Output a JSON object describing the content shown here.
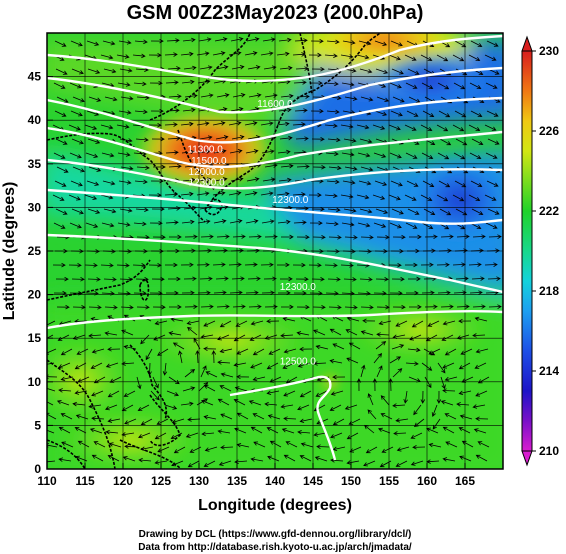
{
  "title": "GSM 00Z23May2023 (200.0hPa)",
  "xlabel": "Longitude (degrees)",
  "ylabel": "Latitude  (degrees)",
  "credit_line1": "Drawing by DCL (https://www.gfd-dennou.org/library/dcl/)",
  "credit_line2": "Data from http://database.rish.kyoto-u.ac.jp/arch/jmadata/",
  "colors": {
    "land_outline": "#000000",
    "contour": "#ffffff",
    "frame": "#000000"
  },
  "chart_data": {
    "type": "heatmap",
    "x_ticks": [
      "110",
      "115",
      "120",
      "125",
      "130",
      "135",
      "140",
      "145",
      "150",
      "155",
      "160",
      "165"
    ],
    "x_tick_values": [
      110,
      115,
      120,
      125,
      130,
      135,
      140,
      145,
      150,
      155,
      160,
      165
    ],
    "y_ticks": [
      "0",
      "5",
      "10",
      "15",
      "20",
      "25",
      "30",
      "35",
      "40",
      "45"
    ],
    "y_tick_values": [
      0,
      5,
      10,
      15,
      20,
      25,
      30,
      35,
      40,
      45
    ],
    "xlim": [
      110,
      170
    ],
    "ylim": [
      0,
      50
    ],
    "colorbar": {
      "ticks": [
        "230",
        "226",
        "222",
        "218",
        "214",
        "210"
      ],
      "tick_values": [
        230,
        226,
        222,
        218,
        214,
        210
      ],
      "range": [
        210,
        230
      ],
      "stops": [
        {
          "v": 210,
          "color": "#d81dd0"
        },
        {
          "v": 211.5,
          "color": "#7a10c8"
        },
        {
          "v": 213,
          "color": "#1e14c8"
        },
        {
          "v": 215,
          "color": "#1e4fe6"
        },
        {
          "v": 217,
          "color": "#1e9ff0"
        },
        {
          "v": 218.5,
          "color": "#14d2dc"
        },
        {
          "v": 220,
          "color": "#18d88c"
        },
        {
          "v": 222,
          "color": "#20d22a"
        },
        {
          "v": 223.5,
          "color": "#7adc1e"
        },
        {
          "v": 225,
          "color": "#d2e614"
        },
        {
          "v": 226.5,
          "color": "#f0c814"
        },
        {
          "v": 228,
          "color": "#f07814"
        },
        {
          "v": 230,
          "color": "#d81e1e"
        }
      ]
    },
    "contour_labels": [
      {
        "text": "11300.0",
        "lon": 130.8,
        "lat": 36.3
      },
      {
        "text": "11500.0",
        "lon": 131.3,
        "lat": 35.0
      },
      {
        "text": "12000.0",
        "lon": 131.0,
        "lat": 33.7
      },
      {
        "text": "12300.0",
        "lon": 131.0,
        "lat": 32.5
      },
      {
        "text": "11600.0",
        "lon": 140.0,
        "lat": 41.5
      },
      {
        "text": "12300.0",
        "lon": 142.0,
        "lat": 30.5
      },
      {
        "text": "12300.0",
        "lon": 143.0,
        "lat": 20.5
      },
      {
        "text": "12500.0",
        "lon": 143.0,
        "lat": 12.0
      }
    ]
  }
}
